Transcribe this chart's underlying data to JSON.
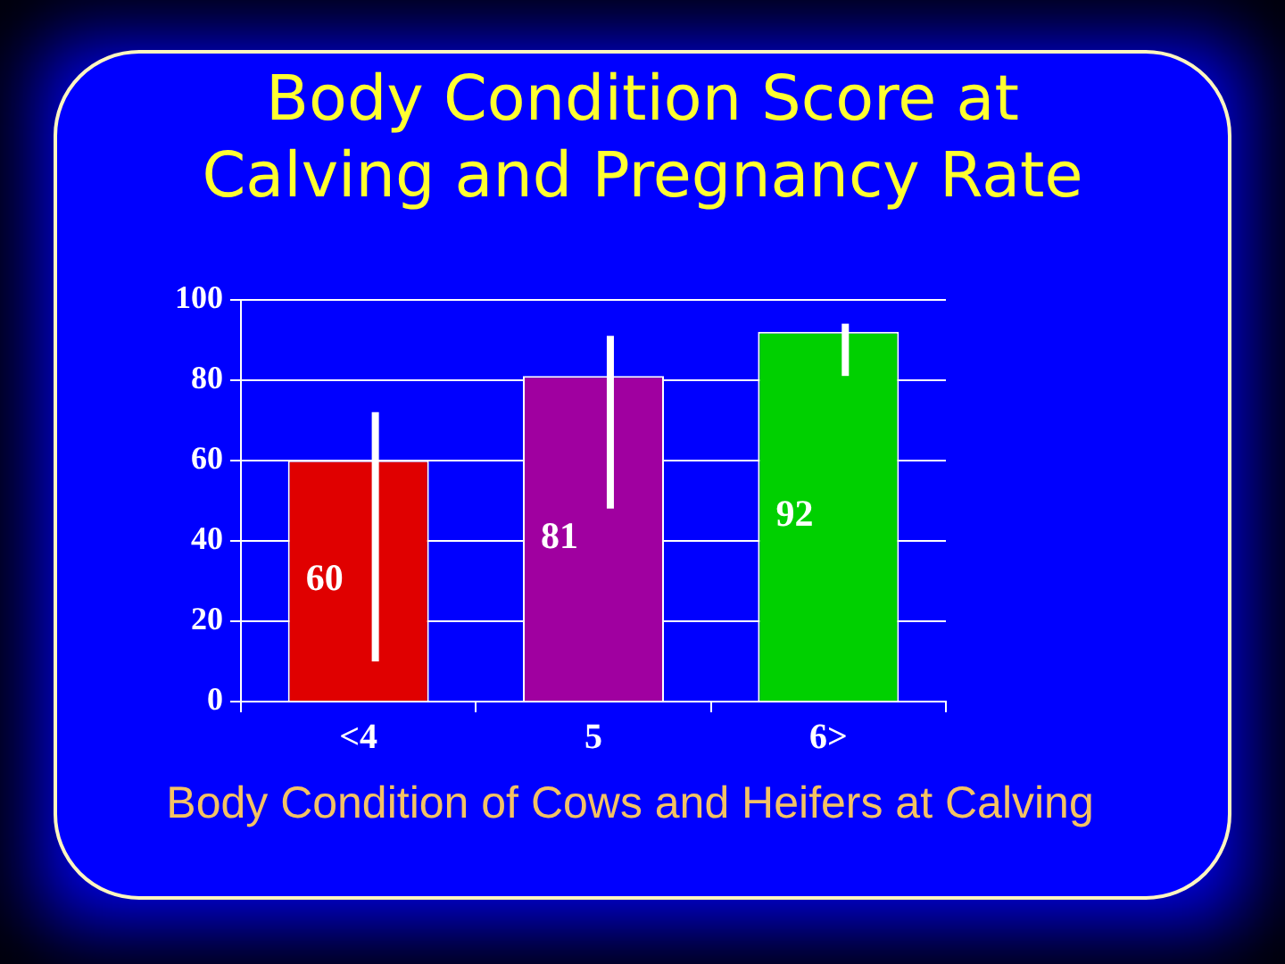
{
  "chart_data": {
    "type": "bar",
    "title": "Body Condition Score at Calving and Pregnancy Rate",
    "xlabel": "Body Condition of Cows and Heifers at Calving",
    "categories": [
      "<4",
      "5",
      "6>"
    ],
    "values": [
      60,
      81,
      92
    ],
    "colors": [
      "#e00000",
      "#a000a0",
      "#00d000"
    ],
    "errors": [
      [
        10,
        72
      ],
      [
        48,
        91
      ],
      [
        81,
        94
      ]
    ],
    "ylim": [
      0,
      100
    ],
    "yticks": [
      0,
      20,
      40,
      60,
      80,
      100
    ],
    "grid": "y",
    "data_labels": true
  }
}
